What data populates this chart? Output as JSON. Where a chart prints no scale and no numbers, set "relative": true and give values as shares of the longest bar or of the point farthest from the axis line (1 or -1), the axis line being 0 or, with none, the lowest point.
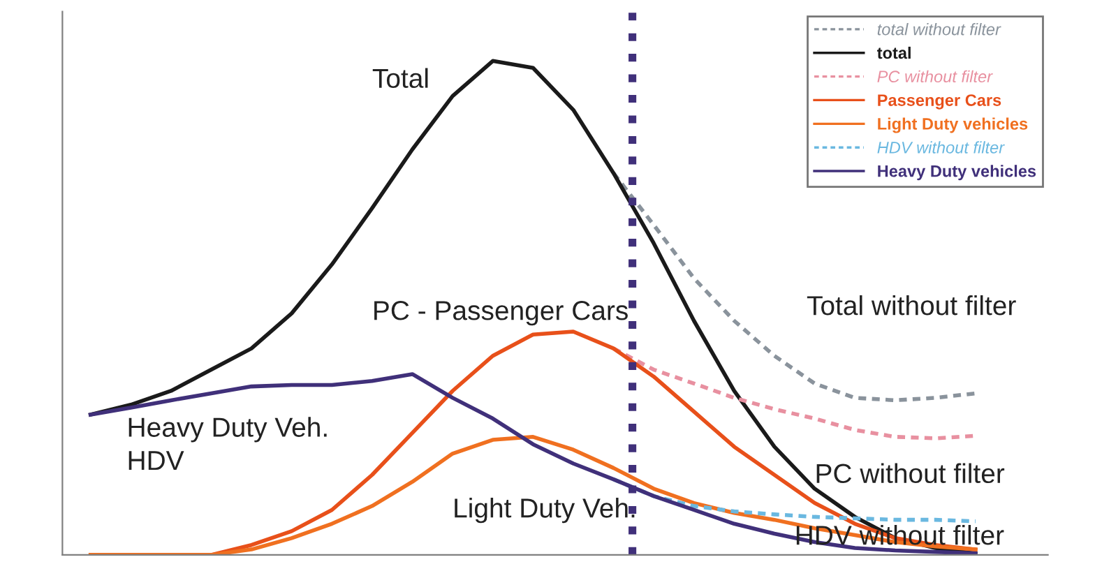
{
  "chart_data": {
    "type": "line",
    "relative": true,
    "categories": [
      null,
      null,
      null,
      null,
      null,
      null,
      null,
      null,
      null,
      null,
      null,
      null,
      null,
      null,
      null,
      null,
      null,
      null,
      null,
      null,
      null,
      null,
      null
    ],
    "series": [
      {
        "name": "total without filter",
        "color": "#8a939c",
        "line_style": "dashed",
        "values": [
          null,
          null,
          null,
          null,
          null,
          null,
          null,
          null,
          null,
          null,
          null,
          null,
          null,
          0.773,
          0.668,
          0.56,
          0.474,
          0.403,
          0.347,
          0.318,
          0.313,
          0.318,
          0.327
        ]
      },
      {
        "name": "total",
        "color": "#1a1a1a",
        "line_style": "solid",
        "values": [
          0.284,
          0.304,
          0.332,
          0.375,
          0.418,
          0.489,
          0.588,
          0.702,
          0.821,
          0.929,
          1,
          0.986,
          0.901,
          0.773,
          0.631,
          0.474,
          0.332,
          0.219,
          0.134,
          0.077,
          0.034,
          0.014,
          0.003
        ]
      },
      {
        "name": "PC without filter",
        "color": "#e890a0",
        "line_style": "dashed",
        "values": [
          null,
          null,
          null,
          null,
          null,
          null,
          null,
          null,
          null,
          null,
          null,
          null,
          null,
          0.418,
          0.375,
          0.347,
          0.318,
          0.295,
          0.276,
          0.253,
          0.239,
          0.236,
          0.241
        ]
      },
      {
        "name": "Passenger Cars",
        "color": "#e8501a",
        "line_style": "solid",
        "values": [
          0,
          0,
          0,
          0,
          0.02,
          0.048,
          0.091,
          0.162,
          0.247,
          0.332,
          0.403,
          0.446,
          0.452,
          0.418,
          0.361,
          0.29,
          0.219,
          0.162,
          0.105,
          0.063,
          0.034,
          0.02,
          0.011
        ]
      },
      {
        "name": "Light Duty vehicles",
        "color": "#f07020",
        "line_style": "solid",
        "values": [
          0,
          0,
          0,
          0,
          0.011,
          0.034,
          0.063,
          0.099,
          0.148,
          0.205,
          0.233,
          0.239,
          0.213,
          0.176,
          0.134,
          0.105,
          0.085,
          0.071,
          0.054,
          0.04,
          0.026,
          0.017,
          0.011
        ]
      },
      {
        "name": "HDV without filter",
        "color": "#6ab8e0",
        "line_style": "dashed",
        "values": [
          null,
          null,
          null,
          null,
          null,
          null,
          null,
          null,
          null,
          null,
          null,
          null,
          null,
          0.153,
          0.119,
          0.099,
          0.088,
          0.082,
          0.077,
          0.074,
          0.071,
          0.071,
          0.068
        ]
      },
      {
        "name": "Heavy Duty vehicles",
        "color": "#40307a",
        "line_style": "solid",
        "values": [
          0.284,
          0.298,
          0.313,
          0.327,
          0.341,
          0.344,
          0.344,
          0.352,
          0.366,
          0.318,
          0.276,
          0.224,
          0.185,
          0.153,
          0.119,
          0.091,
          0.063,
          0.043,
          0.026,
          0.014,
          0.009,
          0.006,
          0.003
        ]
      }
    ],
    "annotations": [
      "Total",
      "PC - Passenger Cars",
      "Heavy Duty Veh.\nHDV",
      "Light Duty Veh.",
      "Total without filter",
      "PC without filter",
      "HDV without filter"
    ],
    "legend": "top right"
  }
}
